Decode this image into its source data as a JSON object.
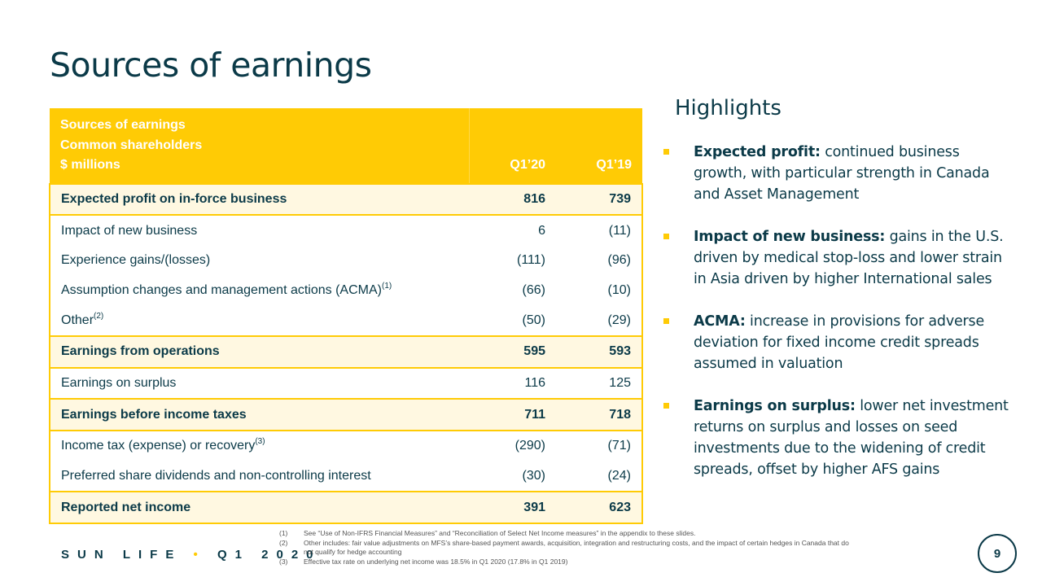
{
  "slide": {
    "title": "Sources of earnings",
    "colors": {
      "brand_yellow": "#ffcb05",
      "text_navy": "#0b3a48",
      "row_highlight": "#fff8e1"
    }
  },
  "table": {
    "header": {
      "line1": "Sources of earnings",
      "line2": "Common shareholders",
      "line3": "$ millions",
      "col1": "Q1’20",
      "col2": "Q1’19"
    },
    "rows": [
      {
        "label": "Expected profit on in-force business",
        "sup": "",
        "q120": "816",
        "q119": "739",
        "bold": true
      },
      {
        "label": "Impact of new business",
        "sup": "",
        "q120": "6",
        "q119": "(11)",
        "bold": false
      },
      {
        "label": "Experience gains/(losses)",
        "sup": "",
        "q120": "(111)",
        "q119": "(96)",
        "bold": false
      },
      {
        "label": "Assumption changes and management actions (ACMA)",
        "sup": "(1)",
        "q120": "(66)",
        "q119": "(10)",
        "bold": false
      },
      {
        "label": "Other",
        "sup": "(2)",
        "q120": "(50)",
        "q119": "(29)",
        "bold": false
      },
      {
        "label": "Earnings from operations",
        "sup": "",
        "q120": "595",
        "q119": "593",
        "bold": true
      },
      {
        "label": "Earnings on surplus",
        "sup": "",
        "q120": "116",
        "q119": "125",
        "bold": false
      },
      {
        "label": "Earnings before income taxes",
        "sup": "",
        "q120": "711",
        "q119": "718",
        "bold": true
      },
      {
        "label": "Income tax (expense) or recovery",
        "sup": "(3)",
        "q120": "(290)",
        "q119": "(71)",
        "bold": false
      },
      {
        "label": "Preferred share dividends and non-controlling interest",
        "sup": "",
        "q120": "(30)",
        "q119": "(24)",
        "bold": false
      },
      {
        "label": "Reported net income",
        "sup": "",
        "q120": "391",
        "q119": "623",
        "bold": true
      }
    ]
  },
  "highlights": {
    "title": "Highlights",
    "items": [
      {
        "bold": "Expected profit:",
        "text": " continued business growth, with particular strength in Canada and Asset Management"
      },
      {
        "bold": "Impact of new business:",
        "text": " gains in the U.S. driven by medical stop-loss and lower strain in Asia driven by higher International sales"
      },
      {
        "bold": "ACMA:",
        "text": " increase in provisions for adverse deviation for fixed income credit spreads assumed in valuation"
      },
      {
        "bold": "Earnings on surplus:",
        "text": " lower net investment returns on surplus and losses on seed investments due to the widening of credit spreads, offset by higher AFS gains"
      }
    ]
  },
  "footer": {
    "brand": "SUN LIFE",
    "dot": "•",
    "period": "Q1 2020",
    "page_number": "9",
    "footnotes": [
      {
        "num": "(1)",
        "text": "See “Use of Non-IFRS Financial Measures” and “Reconciliation of Select Net Income measures” in the appendix to these slides."
      },
      {
        "num": "(2)",
        "text": "Other includes: fair value adjustments on MFS’s share-based payment awards, acquisition, integration and restructuring costs, and the impact of certain hedges in Canada that do not qualify for hedge accounting"
      },
      {
        "num": "(3)",
        "text": "Effective tax rate on underlying net income was 18.5% in Q1 2020 (17.8% in Q1 2019)"
      }
    ]
  }
}
